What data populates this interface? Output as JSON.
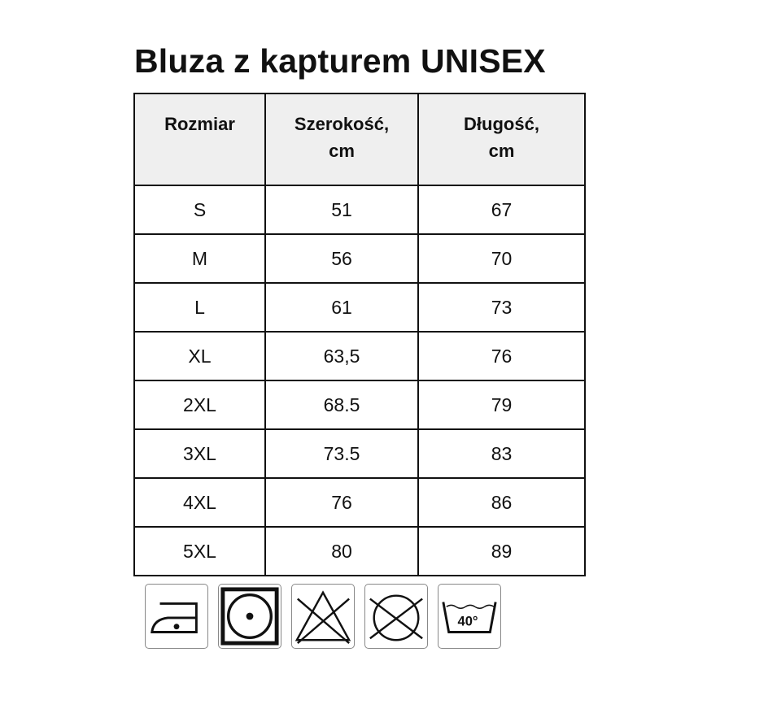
{
  "title": "Bluza z kapturem UNISEX",
  "table": {
    "headers": [
      "Rozmiar",
      "Szerokość,\ncm",
      "Długość,\ncm"
    ],
    "rows": [
      [
        "S",
        "51",
        "67"
      ],
      [
        "M",
        "56",
        "70"
      ],
      [
        "L",
        "61",
        "73"
      ],
      [
        "XL",
        "63,5",
        "76"
      ],
      [
        "2XL",
        "68.5",
        "79"
      ],
      [
        "3XL",
        "73.5",
        "83"
      ],
      [
        "4XL",
        "76",
        "86"
      ],
      [
        "5XL",
        "80",
        "89"
      ]
    ]
  },
  "care_icons": [
    "iron-low-temp-icon",
    "tumble-dry-icon",
    "do-not-bleach-icon",
    "do-not-dry-clean-icon",
    "wash-40-icon"
  ],
  "wash_temp": "40°"
}
